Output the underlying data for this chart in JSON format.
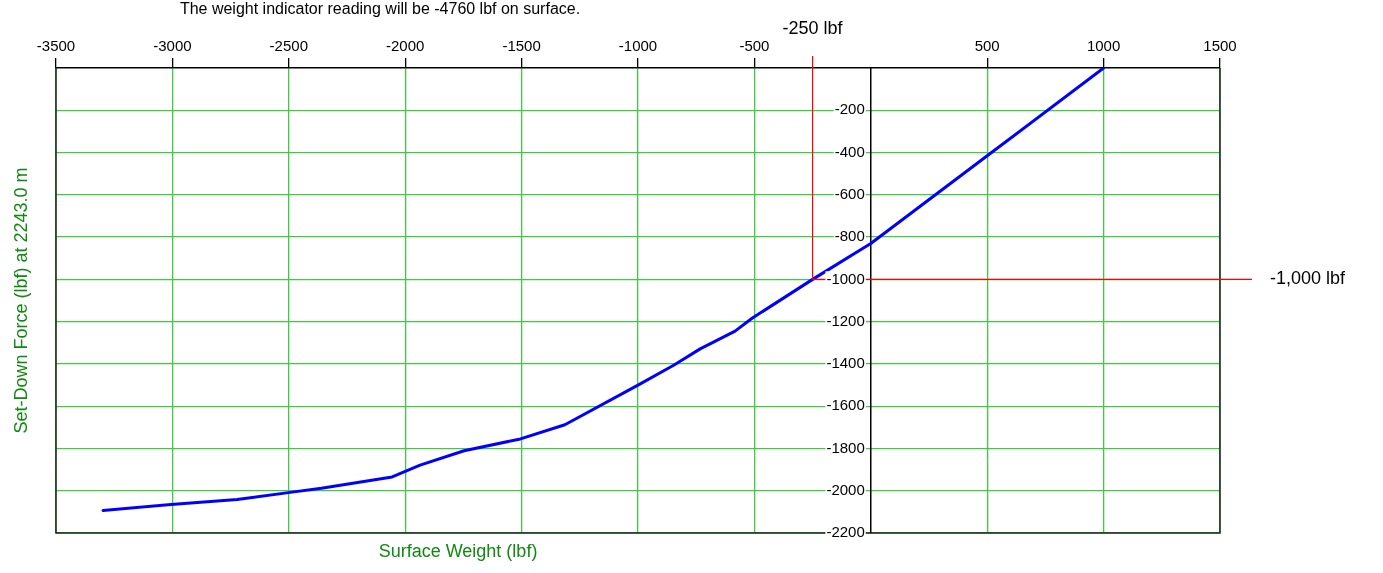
{
  "chart_data": {
    "type": "line",
    "subtitle": "The weight indicator reading will be -4760 lbf on surface.",
    "xlabel": "Surface Weight (lbf)",
    "ylabel": "Set-Down Force (lbf) at 2243.0 m",
    "series": [
      {
        "color": "#0000ff",
        "x": [
          -3298,
          -3006,
          -2722,
          -2502,
          -2360,
          -2056,
          -1936,
          -1747,
          -1505,
          -1314,
          -998,
          -845,
          -733,
          -583,
          -510,
          -250,
          0,
          500,
          1000
        ],
        "values": [
          -2093,
          -2065,
          -2042,
          -2009,
          -1988,
          -1935,
          -1879,
          -1811,
          -1755,
          -1688,
          -1499,
          -1405,
          -1329,
          -1245,
          -1184,
          -1000,
          -830,
          -415,
          0
        ]
      }
    ],
    "xlim": [
      -3500,
      1500
    ],
    "xticks": [
      -3500,
      -3000,
      -2500,
      -2000,
      -1500,
      -1000,
      -500,
      500,
      1000,
      1500
    ],
    "ylim": [
      -2200,
      0
    ],
    "yticks": [
      -2200,
      -2000,
      -1800,
      -1600,
      -1400,
      -1200,
      -1000,
      -800,
      -600,
      -400,
      -200
    ],
    "ref_lines": [
      {
        "axis": "x",
        "value": -250,
        "label": "-250 lbf",
        "color": "#ff0000"
      },
      {
        "axis": "y",
        "value": -1000,
        "label": "-1,000 lbf",
        "color": "#ff0000"
      }
    ],
    "grid": true,
    "line_style": "solid",
    "legend": false
  }
}
